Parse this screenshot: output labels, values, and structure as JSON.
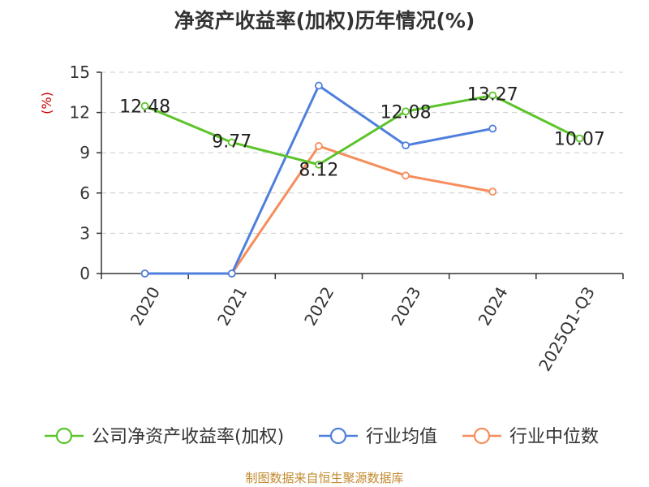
{
  "title": "净资产收益率(加权)历年情况(%)",
  "source": "制图数据来自恒生聚源数据库",
  "colors": {
    "company": "#5cc42a",
    "industry_avg": "#4f7fdc",
    "industry_median": "#f68d5c",
    "grid": "#cccccc",
    "axis": "#333333"
  },
  "chart_data": {
    "type": "line",
    "title": "净资产收益率(加权)历年情况(%)",
    "ylabel": "(%)",
    "xlabel": "",
    "categories": [
      "2020",
      "2021",
      "2022",
      "2023",
      "2024",
      "2025Q1-Q3"
    ],
    "ylim": [
      0,
      15
    ],
    "yticks": [
      0,
      3,
      6,
      9,
      12,
      15
    ],
    "grid": true,
    "legend_position": "bottom",
    "series": [
      {
        "name": "公司净资产收益率(加权)",
        "color": "#5cc42a",
        "values": [
          12.48,
          9.77,
          8.12,
          12.08,
          13.27,
          10.07
        ],
        "labels": [
          "12.48",
          "9.77",
          "8.12",
          "12.08",
          "13.27",
          "10.07"
        ]
      },
      {
        "name": "行业均值",
        "color": "#4f7fdc",
        "values": [
          0,
          0,
          14.0,
          9.55,
          10.8,
          null
        ]
      },
      {
        "name": "行业中位数",
        "color": "#f68d5c",
        "values": [
          0,
          0,
          9.5,
          7.3,
          6.1,
          null
        ]
      }
    ]
  }
}
